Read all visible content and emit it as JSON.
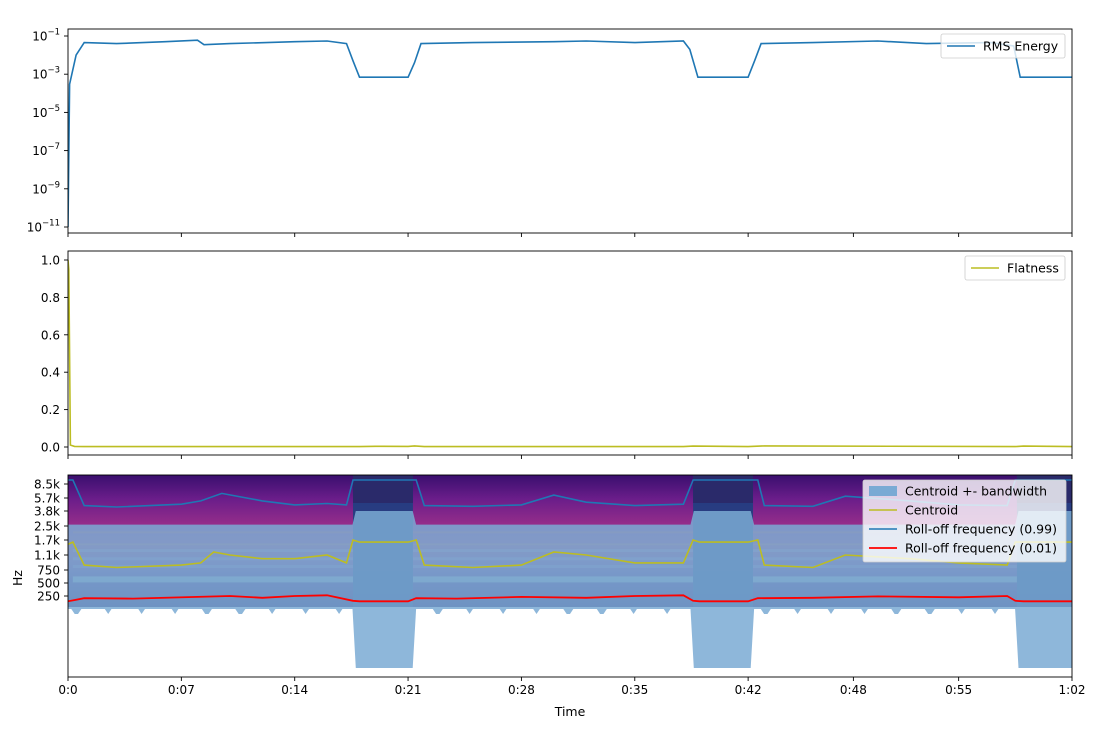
{
  "chart_data": [
    {
      "type": "line",
      "scale": "log",
      "ylim": [
        "1e-11",
        "0.1"
      ],
      "yticks": [
        {
          "base": "10",
          "exp": "−1"
        },
        {
          "base": "10",
          "exp": "−3"
        },
        {
          "base": "10",
          "exp": "−5"
        },
        {
          "base": "10",
          "exp": "−7"
        },
        {
          "base": "10",
          "exp": "−9"
        },
        {
          "base": "10",
          "exp": "−11"
        }
      ],
      "legend": "top-right",
      "series": [
        {
          "name": "RMS Energy",
          "color": "#1f77b4",
          "x": [
            0,
            0.1,
            0.5,
            1,
            3,
            6,
            8,
            8.4,
            10,
            14,
            16,
            17.2,
            17.6,
            18,
            21,
            21.4,
            21.8,
            25,
            30,
            32,
            35,
            38,
            38.4,
            38.9,
            42,
            42.4,
            42.8,
            46,
            50,
            53,
            57,
            58.4,
            58.8,
            62
          ],
          "y": [
            1e-11,
            0.0003,
            0.01,
            0.045,
            0.04,
            0.05,
            0.06,
            0.035,
            0.04,
            0.05,
            0.055,
            0.04,
            0.005,
            0.0007,
            0.0007,
            0.004,
            0.04,
            0.045,
            0.05,
            0.055,
            0.045,
            0.055,
            0.02,
            0.0007,
            0.0007,
            0.005,
            0.04,
            0.045,
            0.055,
            0.04,
            0.045,
            0.03,
            0.0007,
            0.0007
          ]
        }
      ]
    },
    {
      "type": "line",
      "ylim": [
        0,
        1.05
      ],
      "yticks": [
        "0.0",
        "0.2",
        "0.4",
        "0.6",
        "0.8",
        "1.0"
      ],
      "ytick_values": [
        0,
        0.2,
        0.4,
        0.6,
        0.8,
        1.0
      ],
      "legend": "top-right",
      "series": [
        {
          "name": "Flatness",
          "color": "#bcbd22",
          "x": [
            0,
            0.05,
            0.15,
            0.4,
            1,
            18,
            19,
            21,
            21.4,
            22,
            38,
            38.6,
            42,
            43,
            58.5,
            59,
            62
          ],
          "y": [
            1.0,
            0.95,
            0.01,
            0.003,
            0.002,
            0.002,
            0.004,
            0.003,
            0.006,
            0.002,
            0.002,
            0.005,
            0.002,
            0.006,
            0.002,
            0.005,
            0.002
          ]
        }
      ]
    },
    {
      "type": "heatmap",
      "ylabel": "Hz",
      "xlabel": "Time",
      "xlim": [
        0,
        62
      ],
      "xticks": [
        "0:0",
        "0:07",
        "0:14",
        "0:21",
        "0:28",
        "0:35",
        "0:42",
        "0:48",
        "0:55",
        "1:02"
      ],
      "xtick_values": [
        0,
        7,
        14,
        21,
        28,
        35,
        42,
        48.5,
        55,
        62
      ],
      "yticks": [
        "8.5k",
        "5.7k",
        "3.8k",
        "2.5k",
        "1.7k",
        "1.1k",
        "750",
        "500",
        "250"
      ],
      "ytick_values": [
        8500,
        5700,
        3800,
        2500,
        1700,
        1100,
        750,
        500,
        250
      ],
      "legend": "top-right",
      "series": [
        {
          "name": "Centroid +- bandwidth",
          "color": "#7aaad4",
          "kind": "band"
        },
        {
          "name": "Centroid",
          "color": "#bcbd22",
          "x": [
            0,
            0.3,
            1,
            3,
            7,
            8.2,
            9,
            10,
            12,
            14,
            16,
            17.2,
            17.6,
            18,
            21,
            21.5,
            22,
            25,
            28,
            30,
            32,
            35,
            38,
            38.6,
            39,
            42,
            42.6,
            43,
            46,
            48,
            52,
            55,
            58,
            58.5,
            59,
            62
          ],
          "y": [
            1500,
            1600,
            850,
            800,
            850,
            900,
            1200,
            1100,
            1000,
            1000,
            1100,
            900,
            1700,
            1600,
            1600,
            1700,
            850,
            800,
            850,
            1200,
            1100,
            900,
            900,
            1700,
            1600,
            1600,
            1700,
            850,
            800,
            1100,
            1000,
            900,
            850,
            1600,
            1600,
            1600
          ]
        },
        {
          "name": "Roll-off frequency (0.99)",
          "color": "#1f77b4",
          "x": [
            0,
            0.3,
            1,
            3,
            7,
            8.2,
            9.5,
            12,
            14,
            16,
            17.2,
            17.6,
            18,
            21,
            21.5,
            22,
            25,
            28,
            30,
            32,
            35,
            38,
            38.6,
            39,
            42,
            42.6,
            43,
            46,
            48,
            52,
            55,
            58,
            58.5,
            59,
            62
          ],
          "y": [
            9500,
            9500,
            4500,
            4300,
            4700,
            5200,
            6500,
            5200,
            4600,
            4800,
            4600,
            9500,
            9500,
            9500,
            9500,
            4500,
            4400,
            4600,
            6200,
            5000,
            4500,
            4700,
            9500,
            9500,
            9500,
            9500,
            4500,
            4400,
            6000,
            5200,
            4600,
            4500,
            9500,
            9500,
            9500
          ]
        },
        {
          "name": "Roll-off frequency (0.01)",
          "color": "#ff0000",
          "x": [
            0,
            0.3,
            1,
            4,
            8,
            10,
            12,
            14,
            16,
            17.6,
            18,
            21,
            21.5,
            24,
            28,
            32,
            35,
            38,
            38.6,
            39,
            42,
            42.6,
            46,
            50,
            55,
            58,
            58.5,
            59,
            62
          ],
          "y": [
            130,
            150,
            200,
            190,
            230,
            250,
            210,
            250,
            260,
            140,
            130,
            130,
            200,
            190,
            230,
            210,
            250,
            260,
            140,
            130,
            130,
            200,
            210,
            240,
            220,
            250,
            140,
            130,
            130
          ]
        }
      ]
    }
  ]
}
